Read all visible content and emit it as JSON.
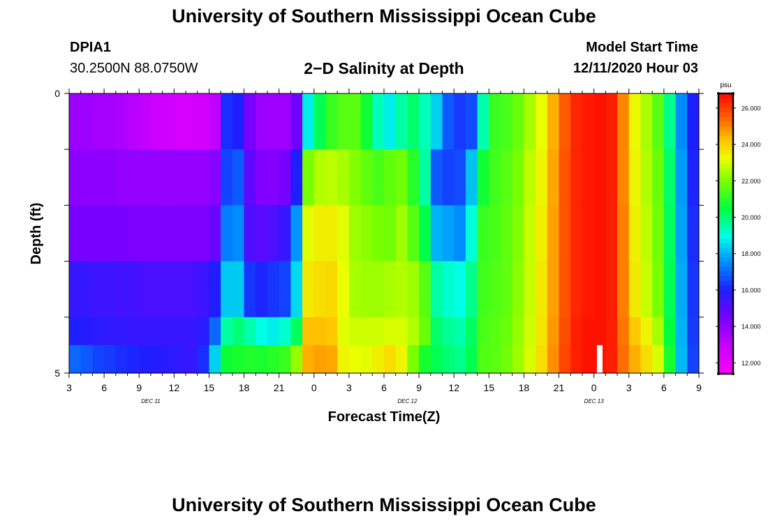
{
  "page": {
    "title_top": "University of Southern Mississippi Ocean Cube",
    "title_bottom": "University of Southern Mississippi Ocean Cube",
    "station_id": "DPIA1",
    "station_coords": "30.2500N 88.0750W",
    "plot_title": "2−D Salinity at Depth",
    "model_start_label": "Model Start Time",
    "model_start_value": "12/11/2020 Hour 03"
  },
  "chart_data": {
    "type": "heatmap",
    "title": "2−D Salinity at Depth",
    "xlabel": "Forecast Time(Z)",
    "ylabel": "Depth (ft)",
    "x_tick_labels": [
      "3",
      "6",
      "9",
      "12",
      "15",
      "18",
      "21",
      "0",
      "3",
      "6",
      "9",
      "12",
      "15",
      "18",
      "21",
      "0",
      "3",
      "6",
      "9"
    ],
    "x_day_labels": [
      {
        "label": "DEC 11",
        "at_hour": 10
      },
      {
        "label": "DEC 12",
        "at_hour": 32
      },
      {
        "label": "DEC 13",
        "at_hour": 48
      }
    ],
    "x_range_hours_from_dec11_00": [
      3,
      57
    ],
    "y_tick_labels": [
      "0",
      "5"
    ],
    "y_range_ft": [
      0,
      5
    ],
    "colorbar": {
      "unit": "psu",
      "min": 11.4,
      "max": 26.8,
      "tick_labels": [
        "12.000",
        "14.000",
        "16.000",
        "18.000",
        "20.000",
        "22.000",
        "24.000",
        "26.000"
      ],
      "tick_values": [
        12,
        14,
        16,
        18,
        20,
        22,
        24,
        26
      ]
    },
    "depth_layers_ft": [
      0.25,
      1.0,
      2.0,
      3.0,
      4.0,
      4.75
    ],
    "time_hours": [
      3,
      4,
      5,
      6,
      7,
      8,
      9,
      10,
      11,
      12,
      13,
      14,
      15,
      16,
      17,
      18,
      19,
      20,
      21,
      22,
      23,
      24,
      25,
      26,
      27,
      28,
      29,
      30,
      31,
      32,
      33,
      34,
      35,
      36,
      37,
      38,
      39,
      40,
      41,
      42,
      43,
      44,
      45,
      46,
      47,
      48,
      49,
      50,
      51,
      52,
      53,
      54,
      55,
      56
    ],
    "salinity": [
      [
        13.8,
        13.8,
        13.7,
        13.6,
        13.5,
        13.3,
        13.1,
        12.9,
        12.8,
        12.6,
        12.6,
        12.7,
        13.1,
        16.2,
        16.0,
        14.5,
        13.8,
        13.8,
        13.8,
        14.6,
        18.8,
        20.3,
        21.2,
        21.6,
        21.6,
        20.7,
        19.4,
        18.8,
        19.6,
        20.1,
        19.4,
        18.4,
        16.8,
        16.4,
        16.6,
        19.5,
        21.2,
        21.4,
        21.8,
        22.5,
        23.2,
        24.5,
        25.6,
        26.4,
        26.6,
        26.7,
        26.5,
        25.0,
        23.3,
        22.5,
        21.6,
        19.8,
        17.5,
        16.0
      ],
      [
        14.1,
        14.1,
        14.1,
        14.1,
        14.0,
        14.0,
        14.0,
        14.0,
        14.0,
        14.0,
        14.0,
        14.0,
        14.2,
        16.5,
        16.8,
        14.9,
        14.3,
        14.3,
        14.5,
        16.0,
        22.0,
        22.6,
        22.7,
        22.5,
        22.1,
        21.7,
        21.4,
        21.7,
        21.9,
        21.0,
        19.6,
        16.8,
        16.5,
        16.6,
        18.2,
        20.7,
        21.3,
        21.6,
        22.0,
        22.7,
        23.4,
        24.6,
        25.7,
        26.4,
        26.6,
        26.7,
        26.5,
        25.0,
        23.4,
        22.6,
        21.8,
        20.1,
        17.7,
        16.1
      ],
      [
        14.5,
        14.5,
        14.5,
        14.5,
        14.5,
        14.4,
        14.4,
        14.4,
        14.4,
        14.4,
        14.4,
        14.4,
        14.8,
        17.3,
        17.5,
        15.2,
        15.0,
        15.2,
        15.6,
        17.6,
        23.1,
        23.5,
        23.5,
        23.1,
        22.4,
        22.2,
        22.0,
        21.9,
        22.4,
        21.6,
        20.4,
        18.0,
        17.8,
        17.5,
        19.1,
        21.2,
        21.4,
        21.7,
        22.1,
        22.8,
        23.5,
        24.7,
        25.7,
        26.4,
        26.6,
        26.7,
        26.5,
        25.1,
        23.5,
        22.7,
        21.9,
        20.2,
        17.8,
        16.2
      ],
      [
        15.6,
        15.6,
        15.5,
        15.5,
        15.4,
        15.4,
        15.3,
        15.3,
        15.3,
        15.3,
        15.3,
        15.5,
        16.0,
        18.3,
        18.3,
        16.3,
        16.1,
        16.3,
        16.5,
        18.5,
        23.6,
        23.8,
        23.9,
        23.2,
        22.5,
        22.4,
        22.4,
        22.5,
        22.6,
        22.4,
        21.6,
        19.6,
        19.2,
        19.0,
        19.8,
        21.3,
        21.5,
        21.7,
        22.2,
        22.8,
        23.6,
        24.7,
        25.7,
        26.4,
        26.6,
        26.7,
        26.5,
        25.1,
        23.6,
        22.8,
        22.0,
        20.3,
        17.9,
        16.3
      ],
      [
        16.0,
        15.9,
        15.8,
        15.7,
        15.7,
        15.6,
        15.6,
        15.6,
        15.6,
        15.6,
        15.6,
        15.8,
        17.0,
        19.6,
        20.0,
        19.5,
        19.0,
        18.8,
        19.2,
        20.2,
        24.3,
        24.3,
        24.2,
        23.1,
        22.9,
        22.9,
        22.9,
        23.0,
        23.0,
        22.6,
        21.8,
        20.1,
        19.7,
        19.5,
        20.2,
        21.4,
        21.6,
        21.8,
        22.3,
        22.9,
        23.7,
        24.8,
        25.8,
        26.5,
        26.7,
        26.7,
        26.5,
        25.2,
        24.2,
        23.4,
        22.5,
        20.5,
        18.0,
        16.4
      ],
      [
        17.0,
        16.8,
        16.5,
        16.4,
        16.2,
        16.1,
        16.0,
        15.9,
        15.8,
        15.7,
        15.6,
        16.2,
        18.4,
        20.6,
        20.8,
        20.9,
        20.8,
        21.0,
        21.2,
        22.3,
        24.5,
        24.7,
        24.6,
        23.4,
        23.2,
        23.1,
        23.5,
        23.8,
        23.4,
        22.0,
        20.8,
        20.3,
        20.0,
        19.8,
        20.3,
        21.5,
        21.6,
        21.9,
        22.4,
        23.0,
        23.8,
        24.9,
        25.9,
        26.5,
        26.7,
        26.7,
        26.5,
        25.3,
        24.5,
        23.8,
        23.0,
        20.8,
        18.1,
        16.5
      ]
    ],
    "no_data_marker": {
      "at_hour": 48.5,
      "depth_ft_from": 4.5,
      "depth_ft_to": 5
    }
  }
}
